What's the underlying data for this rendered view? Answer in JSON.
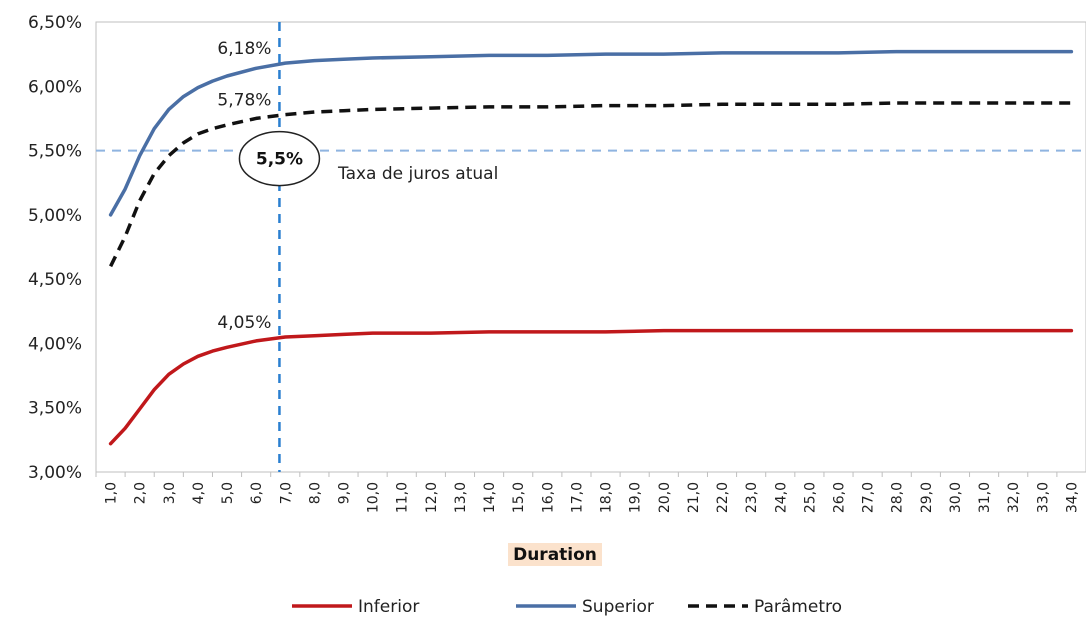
{
  "chart_data": {
    "type": "line",
    "xlabel": "Duration",
    "ylabel": "",
    "ylim": [
      0.03,
      0.065
    ],
    "xlim": [
      1,
      34
    ],
    "yticks": [
      "3,00%",
      "3,50%",
      "4,00%",
      "4,50%",
      "5,00%",
      "5,50%",
      "6,00%",
      "6,50%"
    ],
    "ytick_values": [
      0.03,
      0.035,
      0.04,
      0.045,
      0.05,
      0.055,
      0.06,
      0.065
    ],
    "xticks": [
      "1,0",
      "2,0",
      "3,0",
      "4,0",
      "5,0",
      "6,0",
      "7,0",
      "8,0",
      "9,0",
      "10,0",
      "11,0",
      "12,0",
      "13,0",
      "14,0",
      "15,0",
      "16,0",
      "17,0",
      "18,0",
      "19,0",
      "20,0",
      "21,0",
      "22,0",
      "23,0",
      "24,0",
      "25,0",
      "26,0",
      "27,0",
      "28,0",
      "29,0",
      "30,0",
      "31,0",
      "32,0",
      "33,0",
      "34,0"
    ],
    "grid": false,
    "legend_position": "bottom-center",
    "series": [
      {
        "name": "Inferior",
        "color": "#c0181b",
        "style": "solid",
        "x": [
          1,
          1.5,
          2,
          2.5,
          3,
          3.5,
          4,
          4.5,
          5,
          6,
          7,
          8,
          9,
          10,
          12,
          14,
          16,
          18,
          20,
          22,
          24,
          26,
          28,
          30,
          32,
          34
        ],
        "y": [
          0.0322,
          0.0334,
          0.0349,
          0.0364,
          0.0376,
          0.0384,
          0.039,
          0.0394,
          0.0397,
          0.0402,
          0.0405,
          0.0406,
          0.0407,
          0.0408,
          0.0408,
          0.0409,
          0.0409,
          0.0409,
          0.041,
          0.041,
          0.041,
          0.041,
          0.041,
          0.041,
          0.041,
          0.041
        ]
      },
      {
        "name": "Superior",
        "color": "#4a6fa5",
        "style": "solid",
        "x": [
          1,
          1.5,
          2,
          2.5,
          3,
          3.5,
          4,
          4.5,
          5,
          6,
          7,
          8,
          9,
          10,
          12,
          14,
          16,
          18,
          20,
          22,
          24,
          26,
          28,
          30,
          32,
          34
        ],
        "y": [
          0.05,
          0.052,
          0.0546,
          0.0567,
          0.0582,
          0.0592,
          0.0599,
          0.0604,
          0.0608,
          0.0614,
          0.0618,
          0.062,
          0.0621,
          0.0622,
          0.0623,
          0.0624,
          0.0624,
          0.0625,
          0.0625,
          0.0626,
          0.0626,
          0.0626,
          0.0627,
          0.0627,
          0.0627,
          0.0627
        ]
      },
      {
        "name": "Parâmetro",
        "color": "#111111",
        "style": "dashed",
        "x": [
          1,
          1.5,
          2,
          2.5,
          3,
          3.5,
          4,
          4.5,
          5,
          6,
          7,
          8,
          9,
          10,
          12,
          14,
          16,
          18,
          20,
          22,
          24,
          26,
          28,
          30,
          32,
          34
        ],
        "y": [
          0.046,
          0.0483,
          0.0511,
          0.0532,
          0.0546,
          0.0556,
          0.0563,
          0.0567,
          0.057,
          0.0575,
          0.0578,
          0.058,
          0.0581,
          0.0582,
          0.0583,
          0.0584,
          0.0584,
          0.0585,
          0.0585,
          0.0586,
          0.0586,
          0.0586,
          0.0587,
          0.0587,
          0.0587,
          0.0587
        ]
      }
    ],
    "reference_lines": {
      "horizontal": {
        "value": 0.055,
        "color": "#8fb4e0",
        "style": "dashed"
      },
      "vertical": {
        "value": 6.8,
        "color": "#2a7fd0",
        "style": "dashed"
      }
    },
    "annotations": [
      {
        "text": "6,18%",
        "x": 6.8,
        "y": 0.0618
      },
      {
        "text": "5,78%",
        "x": 6.8,
        "y": 0.0578
      },
      {
        "text": "4,05%",
        "x": 6.8,
        "y": 0.0405
      },
      {
        "text": "5,5%",
        "x": 6.8,
        "y": 0.055,
        "style": "circle"
      },
      {
        "text": "Taxa de juros atual",
        "x": 9,
        "y": 0.0548
      }
    ]
  }
}
